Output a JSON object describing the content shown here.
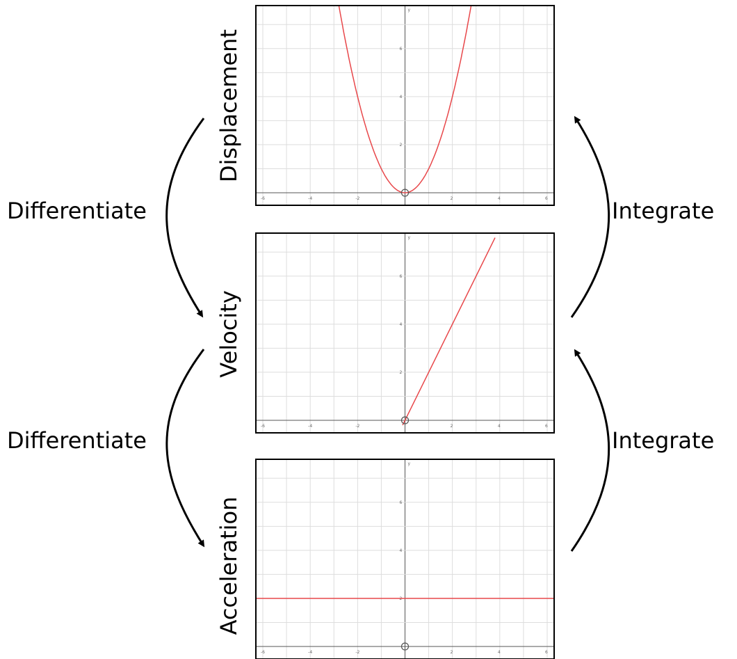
{
  "colors": {
    "curve": "#e8474a",
    "frame": "#000000",
    "grid": "#dddddd",
    "axis": "#555555",
    "arrow": "#000000"
  },
  "panels": [
    {
      "label": "Displacement",
      "equation": "y = x^2",
      "y_tick_labels": [
        "2",
        "4",
        "6"
      ],
      "x_tick_labels": [
        "-6",
        "-4",
        "-2",
        "2",
        "4",
        "6"
      ],
      "y_axis_letter": "y"
    },
    {
      "label": "Velocity",
      "equation": "y = 2x",
      "y_tick_labels": [
        "2",
        "4",
        "6"
      ],
      "x_tick_labels": [
        "-6",
        "-4",
        "-2",
        "2",
        "4",
        "6"
      ],
      "y_axis_letter": "y"
    },
    {
      "label": "Acceleration",
      "equation": "y = 2",
      "y_tick_labels": [
        "2",
        "4",
        "6"
      ],
      "x_tick_labels": [
        "-6",
        "-4",
        "-2",
        "2",
        "4",
        "6"
      ],
      "y_axis_letter": "y"
    }
  ],
  "left_labels": [
    "Differentiate",
    "Differentiate"
  ],
  "right_labels": [
    "Integrate",
    "Integrate"
  ],
  "chart_data": [
    {
      "type": "line",
      "function": "x^2",
      "xlim": [
        -6,
        6
      ],
      "ylim": [
        0,
        7.5
      ],
      "series": [
        {
          "x": [
            -2.8,
            -2,
            -1,
            0,
            1,
            2,
            2.8
          ],
          "y": [
            7.84,
            4,
            1,
            0,
            1,
            4,
            7.84
          ]
        }
      ]
    },
    {
      "type": "line",
      "function": "2x",
      "xlim": [
        -6,
        6
      ],
      "ylim": [
        0,
        7.5
      ],
      "series": [
        {
          "x": [
            0,
            3.8
          ],
          "y": [
            0,
            7.6
          ]
        }
      ]
    },
    {
      "type": "line",
      "function": "2",
      "xlim": [
        -6,
        6
      ],
      "ylim": [
        0,
        7.5
      ],
      "series": [
        {
          "x": [
            -6,
            6
          ],
          "y": [
            2,
            2
          ]
        }
      ]
    }
  ]
}
